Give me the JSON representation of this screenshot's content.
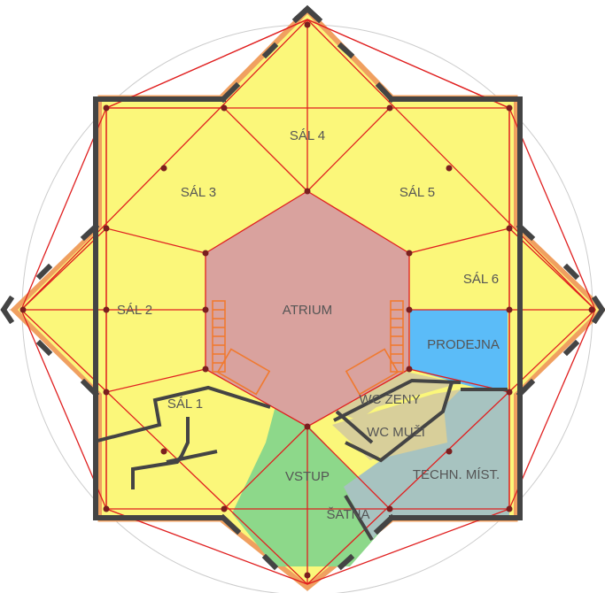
{
  "rooms": {
    "sal4": "SÁL 4",
    "sal3": "SÁL 3",
    "sal5": "SÁL 5",
    "sal6": "SÁL 6",
    "sal2": "SÁL 2",
    "atrium": "ATRIUM",
    "prodejna": "PRODEJNA",
    "sal1": "SÁL 1",
    "wc_zeny": "WC ŽENY",
    "wc_muzi": "WC MUŽI",
    "vstup": "VSTUP",
    "techn": "TECHN. MÍST.",
    "satna": "ŠATNA"
  },
  "colors": {
    "hall": "#fbf77a",
    "atrium": "#d9a29e",
    "shop": "#5bbcf8",
    "wc": "#d8cf9a",
    "entry": "#8dd88a",
    "technical": "#a7c3c0",
    "grid": "#e02020",
    "wall": "#444444",
    "stairs": "#f07a30",
    "circles": "#cccccc"
  }
}
